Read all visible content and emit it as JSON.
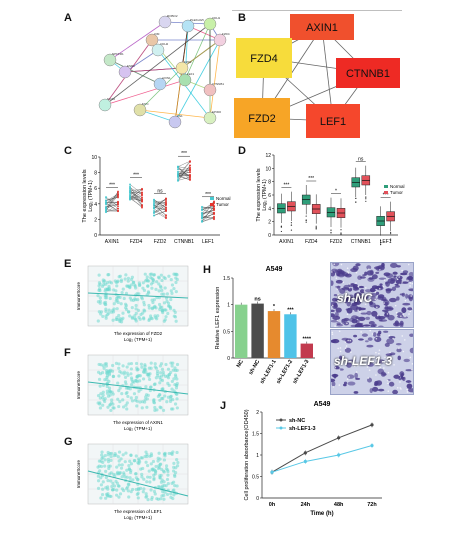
{
  "panels": {
    "A": {
      "label": "A",
      "nodes": [
        "ROBO2",
        "PLEKHG5",
        "CDH1",
        "FZD4",
        "VIM",
        "CDH2",
        "NPFFR1",
        "FZD2",
        "ESR1",
        "AXIN1",
        "LEF1",
        "CTNNB1",
        "SOX2",
        "MYC",
        "FN1",
        "EP300"
      ]
    },
    "B": {
      "label": "B",
      "nodes": [
        {
          "name": "AXIN1",
          "color": "#f0502d"
        },
        {
          "name": "FZD4",
          "color": "#f7dc3b"
        },
        {
          "name": "CTNNB1",
          "color": "#ee2a24"
        },
        {
          "name": "FZD2",
          "color": "#f7a526"
        },
        {
          "name": "LEF1",
          "color": "#f5472c"
        }
      ]
    },
    "C": {
      "label": "C",
      "ylabel": "The expression levels",
      "ylabel2": "Log₂ (TPM+1)",
      "legend": [
        "Normal",
        "Tumor"
      ],
      "sig": [
        "***",
        "***",
        "ns",
        "***",
        "***"
      ]
    },
    "D": {
      "label": "D",
      "ylabel": "The expression levels",
      "ylabel2": "Log₂ (TPM+1)",
      "legend": [
        "Normal",
        "Tumor"
      ],
      "sig": [
        "***",
        "***",
        "*",
        "ns",
        "***"
      ]
    },
    "E": {
      "label": "E",
      "ylabel": "ImmuneScore",
      "xlabel": "The expression of FZD2",
      "xlabel2": "Log₂ (TPM+1)"
    },
    "F": {
      "label": "F",
      "ylabel": "ImmuneScore",
      "xlabel": "The expression of AXIN1",
      "xlabel2": "Log₂ (TPM+1)"
    },
    "G": {
      "label": "G",
      "ylabel": "ImmuneScore",
      "xlabel": "The expression of LEF1",
      "xlabel2": "Log₂ (TPM+1)"
    },
    "H": {
      "label": "H",
      "title": "A549",
      "ylabel": "Relative LEF1 expression"
    },
    "I": {
      "label": "I",
      "captions": [
        "sh-NC",
        "sh-LEF1-3"
      ]
    },
    "J": {
      "label": "J",
      "title": "A549",
      "ylabel": "Cell proliferation absorbance(OD450)",
      "xlabel": "Time (h)"
    }
  },
  "chart_data": [
    {
      "id": "C",
      "type": "line",
      "categories": [
        "AXIN1",
        "FZD4",
        "FZD2",
        "CTNNB1",
        "LEF1"
      ],
      "series": [
        {
          "name": "Normal",
          "values": [
            4.0,
            5.6,
            3.5,
            7.9,
            2.6
          ]
        },
        {
          "name": "Tumor",
          "values": [
            4.3,
            4.8,
            3.4,
            8.3,
            3.1
          ]
        }
      ],
      "ylim": [
        0,
        10
      ],
      "yticks": [
        0,
        2,
        4,
        6,
        8,
        10
      ]
    },
    {
      "id": "D",
      "type": "bar",
      "categories": [
        "AXIN1",
        "FZD4",
        "FZD2",
        "CTNNB1",
        "LEF1"
      ],
      "series": [
        {
          "name": "Normal",
          "values": [
            4.0,
            5.3,
            3.4,
            7.9,
            2.1
          ]
        },
        {
          "name": "Tumor",
          "values": [
            4.3,
            3.9,
            3.3,
            8.2,
            2.8
          ]
        }
      ],
      "ylim": [
        0,
        12
      ],
      "yticks": [
        0,
        2,
        4,
        6,
        8,
        10,
        12
      ]
    },
    {
      "id": "H",
      "type": "bar",
      "categories": [
        "NC",
        "sh-NC",
        "sh-LEF1-1",
        "sh-LEF1-2",
        "sh-LEF1-3"
      ],
      "values": [
        1.0,
        1.02,
        0.88,
        0.82,
        0.27
      ],
      "sig": [
        "",
        "ns",
        "*",
        "***",
        "****"
      ],
      "colors": [
        "#87d18e",
        "#4c4c4c",
        "#e68a2e",
        "#4fc3e8",
        "#c23a4e"
      ],
      "ylim": [
        0,
        1.5
      ],
      "yticks": [
        0.0,
        0.5,
        1.0,
        1.5
      ]
    },
    {
      "id": "J",
      "type": "line",
      "categories": [
        "0h",
        "24h",
        "48h",
        "72h"
      ],
      "series": [
        {
          "name": "sh-NC",
          "values": [
            0.6,
            1.05,
            1.4,
            1.7
          ],
          "color": "#4a4a4a"
        },
        {
          "name": "sh-LEF1-3",
          "values": [
            0.6,
            0.85,
            1.0,
            1.22
          ],
          "color": "#58c8e6"
        }
      ],
      "ylim": [
        0.0,
        2.0
      ],
      "yticks": [
        0.0,
        0.5,
        1.0,
        1.5,
        2.0
      ]
    }
  ]
}
